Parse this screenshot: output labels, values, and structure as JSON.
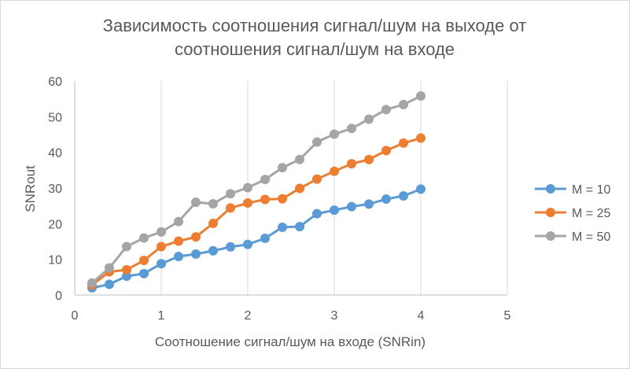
{
  "chart_data": {
    "type": "line",
    "title_lines": [
      "Зависимость соотношения сигнал/шум на выходе от",
      "соотношения сигнал/шум на входе"
    ],
    "xlabel": "Соотношение сигнал/шум на входе (SNRin)",
    "ylabel": "SNRout",
    "xlim": [
      0,
      5
    ],
    "ylim": [
      0,
      60
    ],
    "xticks": [
      "0",
      "1",
      "2",
      "3",
      "4",
      "5"
    ],
    "yticks": [
      "0",
      "10",
      "20",
      "30",
      "40",
      "50",
      "60"
    ],
    "grid": "vertical",
    "legend_position": "right",
    "x": [
      0.2,
      0.4,
      0.6,
      0.8,
      1.0,
      1.2,
      1.4,
      1.6,
      1.8,
      2.0,
      2.2,
      2.4,
      2.6,
      2.8,
      3.0,
      3.2,
      3.4,
      3.6,
      3.8,
      4.0
    ],
    "series": [
      {
        "name": "M = 10",
        "color": "#5b9bd5",
        "values": [
          2.0,
          3.0,
          5.3,
          6.0,
          8.8,
          10.8,
          11.5,
          12.4,
          13.5,
          14.2,
          15.9,
          19.0,
          19.2,
          22.8,
          23.8,
          24.8,
          25.5,
          26.9,
          27.8,
          29.7
        ]
      },
      {
        "name": "M = 25",
        "color": "#ed7d31",
        "values": [
          2.8,
          6.5,
          7.1,
          9.7,
          13.6,
          15.1,
          16.3,
          20.1,
          24.4,
          25.8,
          26.8,
          27.0,
          29.9,
          32.5,
          34.7,
          36.8,
          38.0,
          40.5,
          42.6,
          44.0
        ]
      },
      {
        "name": "M = 50",
        "color": "#a5a5a5",
        "values": [
          3.4,
          7.6,
          13.6,
          16.0,
          17.7,
          20.6,
          26.0,
          25.6,
          28.4,
          30.1,
          32.4,
          35.7,
          38.0,
          42.9,
          45.1,
          46.7,
          49.3,
          52.0,
          53.4,
          55.8
        ]
      }
    ]
  },
  "colors": {
    "text": "#595959",
    "grid": "#d9d9d9",
    "axis": "#bfbfbf"
  }
}
